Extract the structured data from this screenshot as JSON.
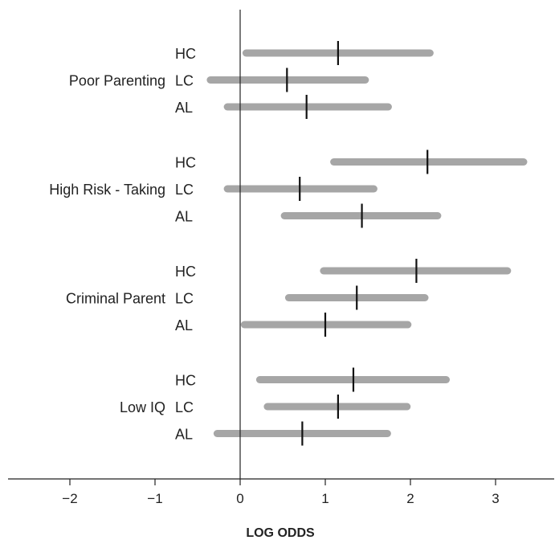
{
  "chart_data": {
    "type": "forest",
    "title": "",
    "xlabel": "LOG ODDS",
    "ylabel": "",
    "xlim": [
      -2.75,
      3.65
    ],
    "xticks": [
      -2,
      -1,
      0,
      1,
      2,
      3
    ],
    "xtick_labels": [
      "−2",
      "−1",
      "0",
      "1",
      "2",
      "3"
    ],
    "reference_line_x": 0,
    "grid": false,
    "colors": {
      "interval": "#a6a6a6",
      "point": "#111111",
      "axis": "#222222"
    },
    "groups": [
      {
        "label": "Poor Parenting",
        "rows": [
          {
            "label": "HC",
            "low": 0.07,
            "estimate": 1.15,
            "high": 2.23
          },
          {
            "label": "LC",
            "low": -0.35,
            "estimate": 0.55,
            "high": 1.47
          },
          {
            "label": "AL",
            "low": -0.15,
            "estimate": 0.78,
            "high": 1.74
          }
        ]
      },
      {
        "label": "High Risk - Taking",
        "rows": [
          {
            "label": "HC",
            "low": 1.1,
            "estimate": 2.2,
            "high": 3.33
          },
          {
            "label": "LC",
            "low": -0.15,
            "estimate": 0.7,
            "high": 1.57
          },
          {
            "label": "AL",
            "low": 0.52,
            "estimate": 1.43,
            "high": 2.32
          }
        ]
      },
      {
        "label": "Criminal Parent",
        "rows": [
          {
            "label": "HC",
            "low": 0.98,
            "estimate": 2.07,
            "high": 3.14
          },
          {
            "label": "LC",
            "low": 0.57,
            "estimate": 1.37,
            "high": 2.17
          },
          {
            "label": "AL",
            "low": 0.05,
            "estimate": 1.0,
            "high": 1.97
          }
        ]
      },
      {
        "label": "Low IQ",
        "rows": [
          {
            "label": "HC",
            "low": 0.23,
            "estimate": 1.33,
            "high": 2.42
          },
          {
            "label": "LC",
            "low": 0.32,
            "estimate": 1.15,
            "high": 1.96
          },
          {
            "label": "AL",
            "low": -0.27,
            "estimate": 0.73,
            "high": 1.73
          }
        ]
      }
    ]
  }
}
